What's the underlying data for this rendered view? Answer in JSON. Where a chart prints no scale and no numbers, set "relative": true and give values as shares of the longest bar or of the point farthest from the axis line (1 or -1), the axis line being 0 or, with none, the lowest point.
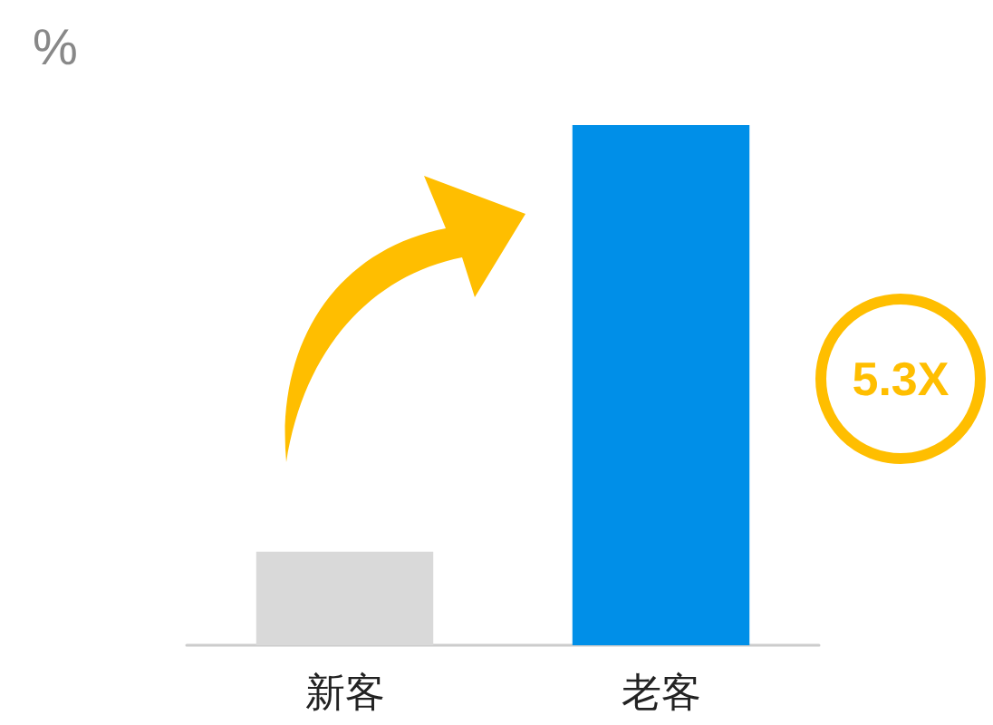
{
  "chart_data": {
    "type": "bar",
    "relative": true,
    "ylabel": "%",
    "categories": [
      "新客",
      "老客"
    ],
    "values": [
      0.18,
      1
    ],
    "colors": [
      "#d9d9d9",
      "#008fe8"
    ],
    "annotations": [
      "5.3X"
    ]
  }
}
